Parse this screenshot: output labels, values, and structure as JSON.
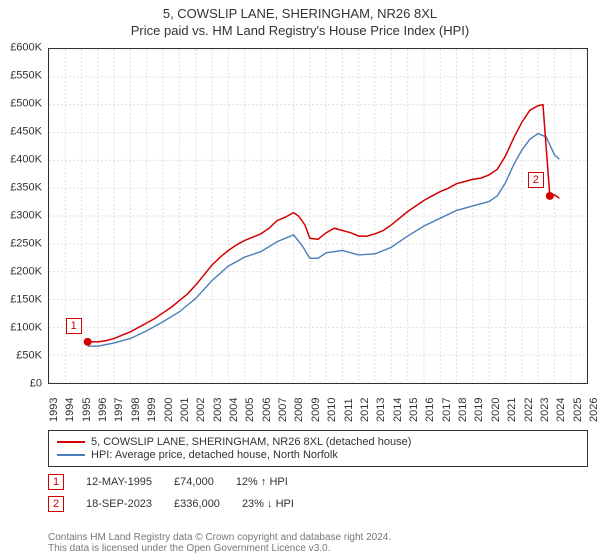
{
  "title_line1": "5, COWSLIP LANE, SHERINGHAM, NR26 8XL",
  "title_line2": "Price paid vs. HM Land Registry's House Price Index (HPI)",
  "chart": {
    "type": "line",
    "ylim": [
      0,
      600000
    ],
    "xlim": [
      1993,
      2026
    ],
    "y_tick_step": 50000,
    "y_tick_labels": [
      "£0",
      "£50K",
      "£100K",
      "£150K",
      "£200K",
      "£250K",
      "£300K",
      "£350K",
      "£400K",
      "£450K",
      "£500K",
      "£550K",
      "£600K"
    ],
    "x_ticks": [
      1993,
      1994,
      1995,
      1996,
      1997,
      1998,
      1999,
      2000,
      2001,
      2002,
      2003,
      2004,
      2005,
      2006,
      2007,
      2008,
      2009,
      2010,
      2011,
      2012,
      2013,
      2014,
      2015,
      2016,
      2017,
      2018,
      2019,
      2020,
      2021,
      2022,
      2023,
      2024,
      2025,
      2026
    ],
    "grid_color": "#dddddd",
    "background_color": "#ffffff",
    "series": {
      "property": {
        "label": "5, COWSLIP LANE, SHERINGHAM, NR26 8XL (detached house)",
        "color": "#d40000",
        "line_width": 1.5,
        "data": [
          [
            1995.37,
            74000
          ],
          [
            1996,
            74000
          ],
          [
            1996.5,
            76000
          ],
          [
            1997,
            80000
          ],
          [
            1997.5,
            86000
          ],
          [
            1998,
            92000
          ],
          [
            1998.5,
            100000
          ],
          [
            1999,
            108000
          ],
          [
            1999.5,
            116000
          ],
          [
            2000,
            126000
          ],
          [
            2000.5,
            136000
          ],
          [
            2001,
            148000
          ],
          [
            2001.5,
            160000
          ],
          [
            2002,
            176000
          ],
          [
            2002.5,
            194000
          ],
          [
            2003,
            212000
          ],
          [
            2003.5,
            226000
          ],
          [
            2004,
            238000
          ],
          [
            2004.5,
            248000
          ],
          [
            2005,
            256000
          ],
          [
            2005.5,
            262000
          ],
          [
            2006,
            268000
          ],
          [
            2006.5,
            278000
          ],
          [
            2007,
            292000
          ],
          [
            2007.5,
            298000
          ],
          [
            2008,
            306000
          ],
          [
            2008.3,
            300000
          ],
          [
            2008.7,
            284000
          ],
          [
            2009,
            260000
          ],
          [
            2009.5,
            258000
          ],
          [
            2010,
            270000
          ],
          [
            2010.5,
            278000
          ],
          [
            2011,
            274000
          ],
          [
            2011.5,
            270000
          ],
          [
            2012,
            264000
          ],
          [
            2012.5,
            264000
          ],
          [
            2013,
            268000
          ],
          [
            2013.5,
            274000
          ],
          [
            2014,
            284000
          ],
          [
            2014.5,
            296000
          ],
          [
            2015,
            308000
          ],
          [
            2015.5,
            318000
          ],
          [
            2016,
            328000
          ],
          [
            2016.5,
            336000
          ],
          [
            2017,
            344000
          ],
          [
            2017.5,
            350000
          ],
          [
            2018,
            358000
          ],
          [
            2018.5,
            362000
          ],
          [
            2019,
            366000
          ],
          [
            2019.5,
            368000
          ],
          [
            2020,
            374000
          ],
          [
            2020.5,
            384000
          ],
          [
            2021,
            408000
          ],
          [
            2021.5,
            440000
          ],
          [
            2022,
            468000
          ],
          [
            2022.5,
            490000
          ],
          [
            2023,
            498000
          ],
          [
            2023.3,
            500000
          ],
          [
            2023.72,
            336000
          ],
          [
            2024,
            338000
          ],
          [
            2024.3,
            332000
          ]
        ]
      },
      "hpi": {
        "label": "HPI: Average price, detached house, North Norfolk",
        "color": "#4a7ebb",
        "line_width": 1.4,
        "data": [
          [
            1995.37,
            66000
          ],
          [
            1996,
            66000
          ],
          [
            1997,
            72000
          ],
          [
            1998,
            80000
          ],
          [
            1999,
            94000
          ],
          [
            2000,
            110000
          ],
          [
            2001,
            128000
          ],
          [
            2002,
            152000
          ],
          [
            2003,
            184000
          ],
          [
            2004,
            210000
          ],
          [
            2005,
            226000
          ],
          [
            2006,
            236000
          ],
          [
            2007,
            254000
          ],
          [
            2007.5,
            260000
          ],
          [
            2008,
            266000
          ],
          [
            2008.5,
            248000
          ],
          [
            2009,
            224000
          ],
          [
            2009.5,
            224000
          ],
          [
            2010,
            234000
          ],
          [
            2011,
            238000
          ],
          [
            2012,
            230000
          ],
          [
            2013,
            232000
          ],
          [
            2014,
            244000
          ],
          [
            2015,
            264000
          ],
          [
            2016,
            282000
          ],
          [
            2017,
            296000
          ],
          [
            2018,
            310000
          ],
          [
            2019,
            318000
          ],
          [
            2020,
            326000
          ],
          [
            2020.5,
            336000
          ],
          [
            2021,
            360000
          ],
          [
            2021.5,
            392000
          ],
          [
            2022,
            418000
          ],
          [
            2022.5,
            438000
          ],
          [
            2023,
            448000
          ],
          [
            2023.5,
            442000
          ],
          [
            2024,
            410000
          ],
          [
            2024.3,
            402000
          ]
        ]
      }
    },
    "sale_markers": [
      {
        "n": "1",
        "x": 1995.37,
        "y": 74000
      },
      {
        "n": "2",
        "x": 2023.72,
        "y": 336000
      }
    ],
    "marker_radius": 4
  },
  "legend": {
    "items": [
      {
        "color": "#d40000",
        "label": "5, COWSLIP LANE, SHERINGHAM, NR26 8XL (detached house)"
      },
      {
        "color": "#4a7ebb",
        "label": "HPI: Average price, detached house, North Norfolk"
      }
    ]
  },
  "sales_table": [
    {
      "n": "1",
      "date": "12-MAY-1995",
      "price": "£74,000",
      "delta": "12% ↑ HPI"
    },
    {
      "n": "2",
      "date": "18-SEP-2023",
      "price": "£336,000",
      "delta": "23% ↓ HPI"
    }
  ],
  "footnote_line1": "Contains HM Land Registry data © Crown copyright and database right 2024.",
  "footnote_line2": "This data is licensed under the Open Government Licence v3.0."
}
